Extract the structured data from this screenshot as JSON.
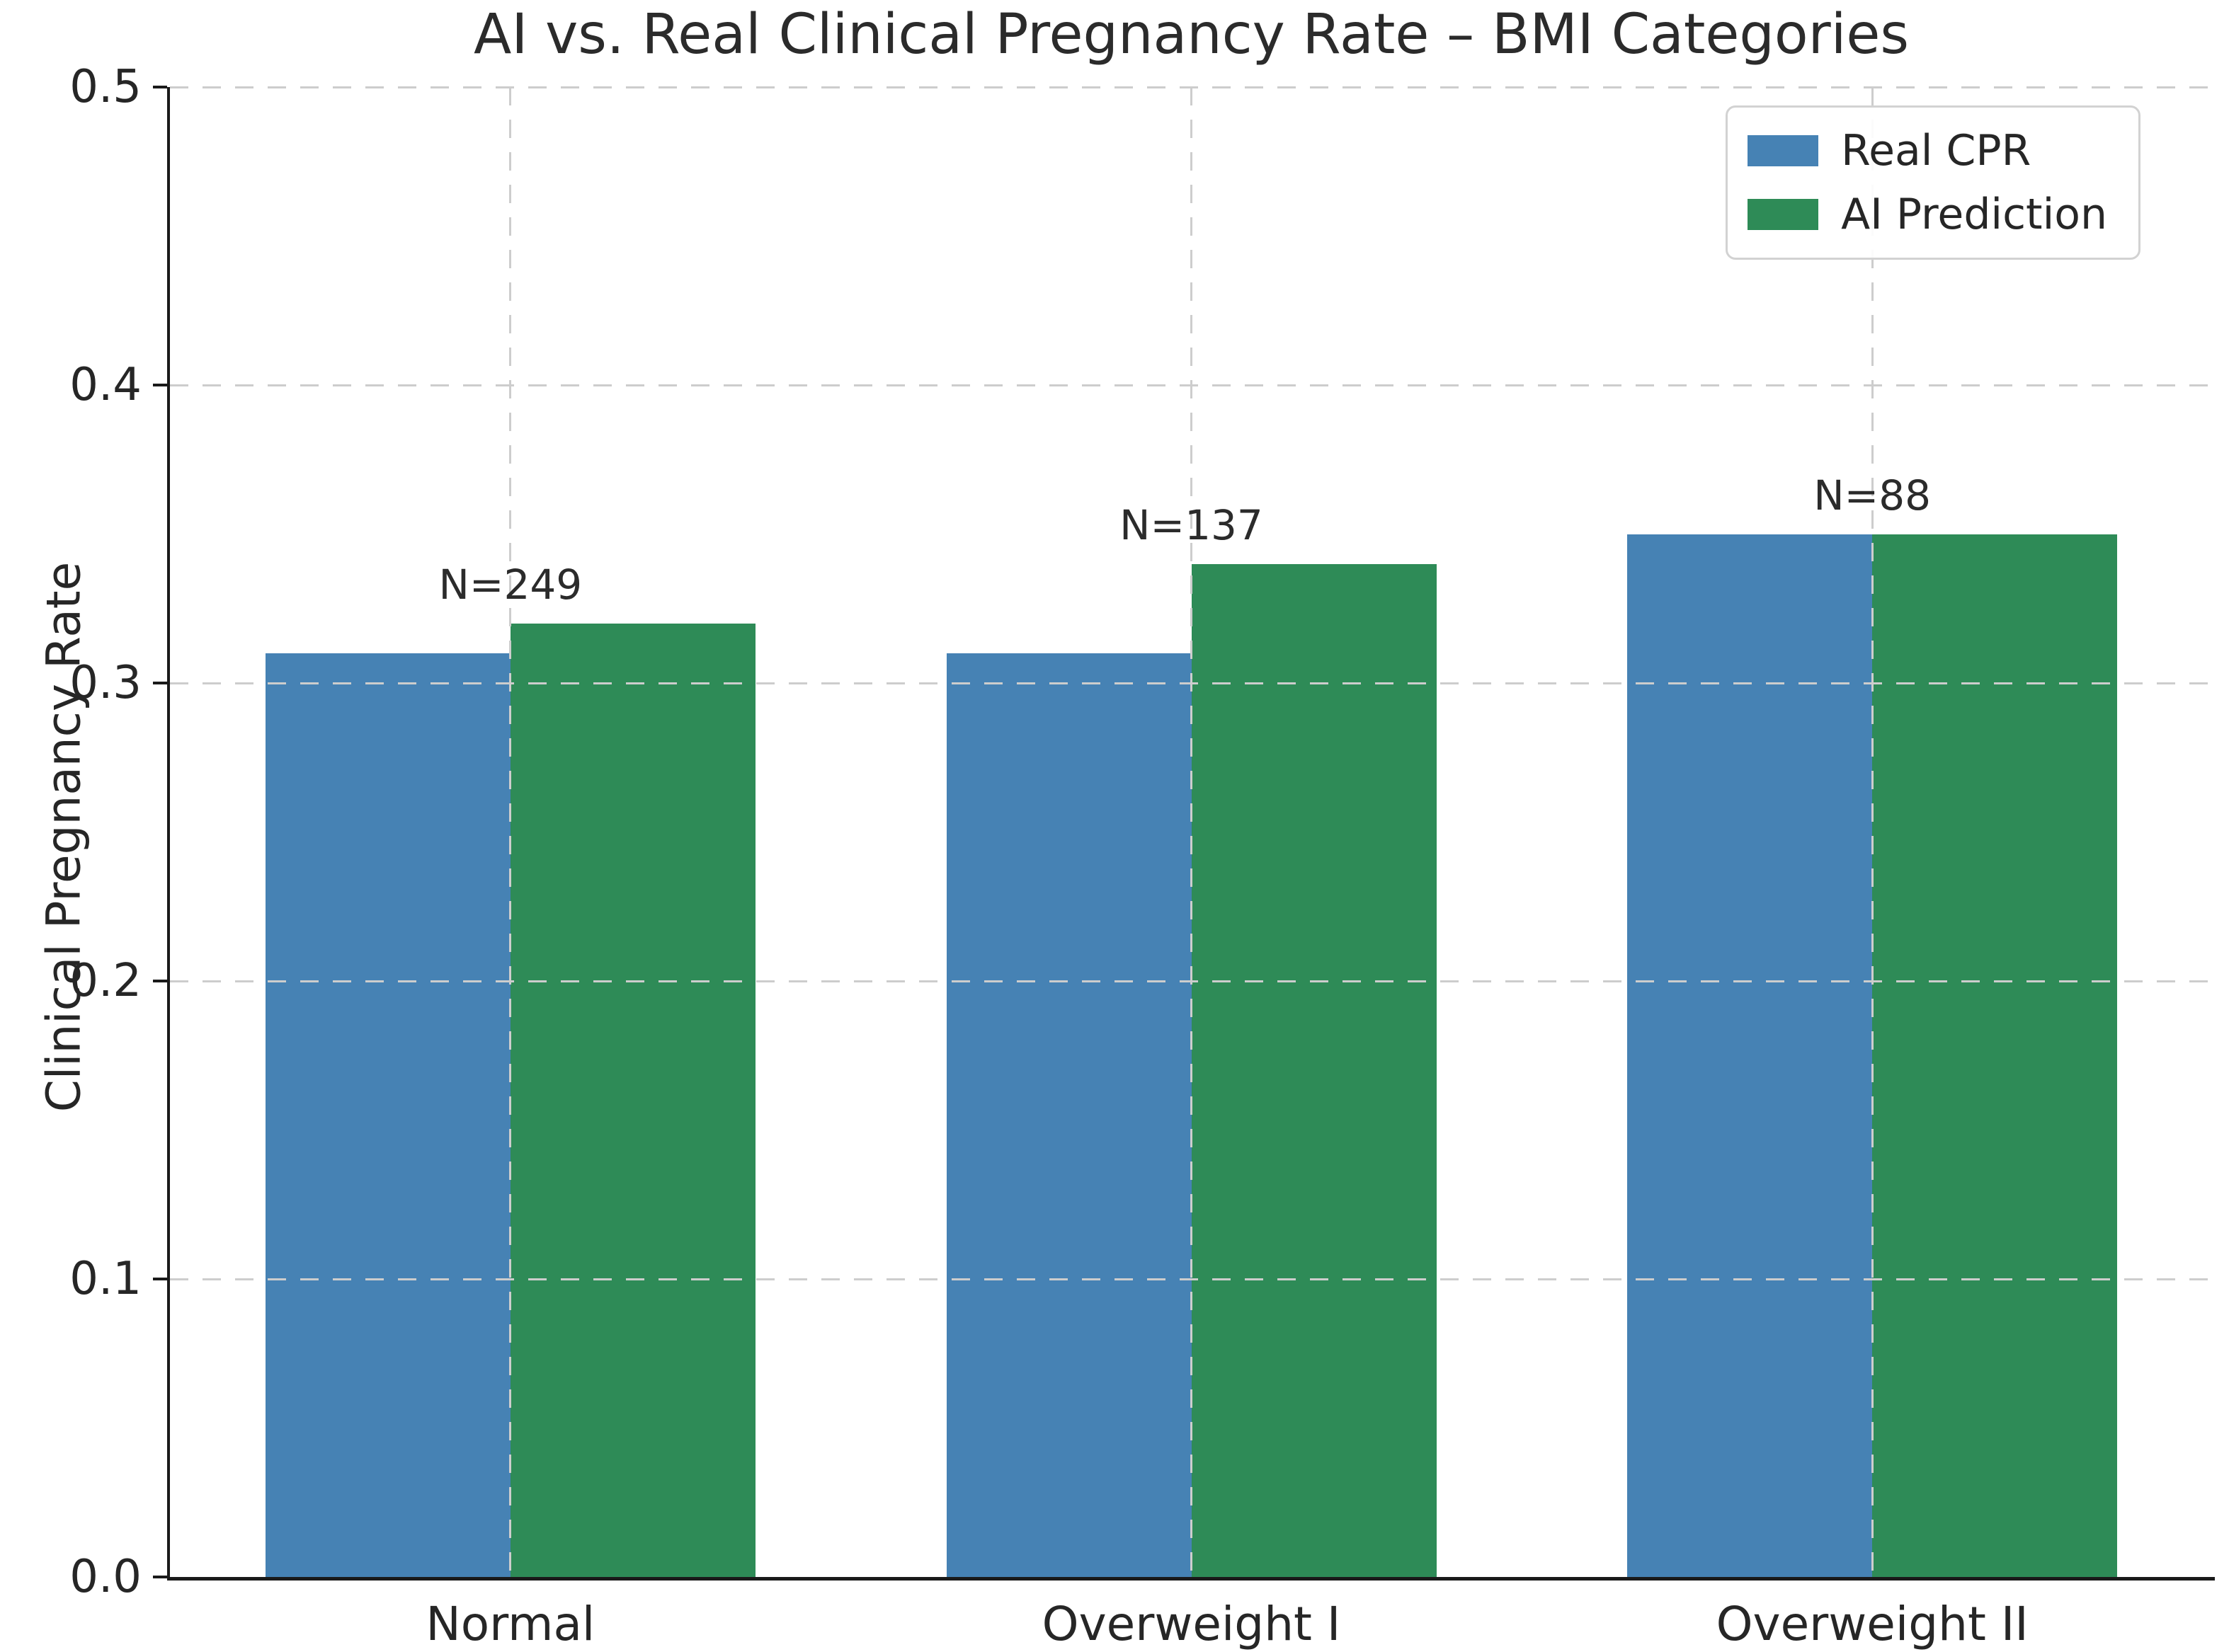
{
  "chart_data": {
    "type": "bar",
    "title": "AI vs. Real Clinical Pregnancy Rate – BMI Categories",
    "ylabel": "Clinical Pregnancy Rate",
    "xlabel": "",
    "categories": [
      "Normal",
      "Overweight I",
      "Overweight II"
    ],
    "series": [
      {
        "name": "Real CPR",
        "color": "#4682B4",
        "values": [
          0.31,
          0.31,
          0.35
        ]
      },
      {
        "name": "AI Prediction",
        "color": "#2E8B57",
        "values": [
          0.32,
          0.34,
          0.35
        ]
      }
    ],
    "annotations": [
      {
        "category": "Normal",
        "label": "N=249"
      },
      {
        "category": "Overweight I",
        "label": "N=137"
      },
      {
        "category": "Overweight II",
        "label": "N=88"
      }
    ],
    "ylim": [
      0.0,
      0.5
    ],
    "yticks": [
      "0.0",
      "0.1",
      "0.2",
      "0.3",
      "0.4",
      "0.5"
    ],
    "grid": "dashed",
    "grid_color": "#cdcdcd",
    "axis_color": "#1a1a1a",
    "text_color": "#262626",
    "legend_position": "upper right",
    "bar_width_fraction": 0.36
  }
}
